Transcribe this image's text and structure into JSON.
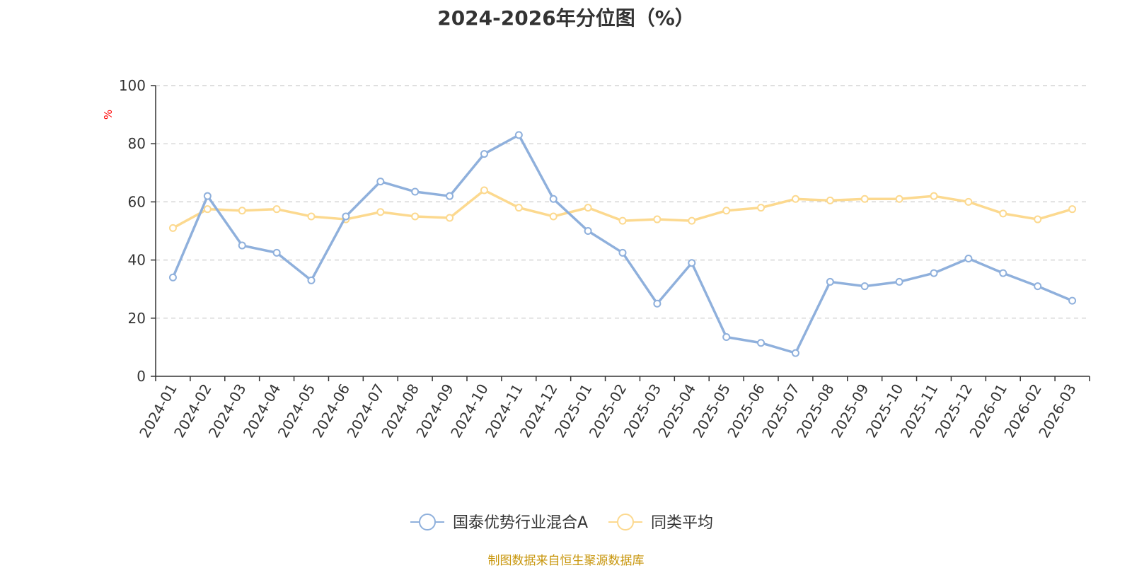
{
  "colors": {
    "series_fund": "#8fb0dc",
    "series_avg": "#fcd98f",
    "axis": "#333333",
    "grid": "#cccccc",
    "unit": "#ff0000",
    "source": "#c8960c"
  },
  "footer": {
    "source": "制图数据来自恒生聚源数据库"
  },
  "chart_data": {
    "type": "line",
    "title": "2024-2026年分位图（%）",
    "ylabel": "%",
    "xlabel": "",
    "ylim": [
      0,
      100
    ],
    "yticks": [
      0,
      20,
      40,
      60,
      80,
      100
    ],
    "grid": true,
    "legend_position": "bottom-center",
    "categories": [
      "2024-01",
      "2024-02",
      "2024-03",
      "2024-04",
      "2024-05",
      "2024-06",
      "2024-07",
      "2024-08",
      "2024-09",
      "2024-10",
      "2024-11",
      "2024-12",
      "2025-01",
      "2025-02",
      "2025-03",
      "2025-04",
      "2025-05",
      "2025-06",
      "2025-07",
      "2025-08",
      "2025-09",
      "2025-10",
      "2025-11",
      "2025-12",
      "2026-01",
      "2026-02",
      "2026-03"
    ],
    "series": [
      {
        "name": "国泰优势行业混合A",
        "color": "#8fb0dc",
        "values": [
          34,
          62,
          45,
          42.5,
          33,
          55,
          67,
          63.5,
          62,
          76.5,
          83,
          61,
          50,
          42.5,
          25,
          39,
          13.5,
          11.5,
          8,
          32.5,
          31,
          32.5,
          35.5,
          40.5,
          35.5,
          31,
          26
        ]
      },
      {
        "name": "同类平均",
        "color": "#fcd98f",
        "values": [
          51,
          57.5,
          57,
          57.5,
          55,
          54,
          56.5,
          55,
          54.5,
          64,
          58,
          55,
          58,
          53.5,
          54,
          53.5,
          57,
          58,
          61,
          60.5,
          61,
          61,
          62,
          60,
          56,
          54,
          57.5
        ]
      }
    ]
  }
}
